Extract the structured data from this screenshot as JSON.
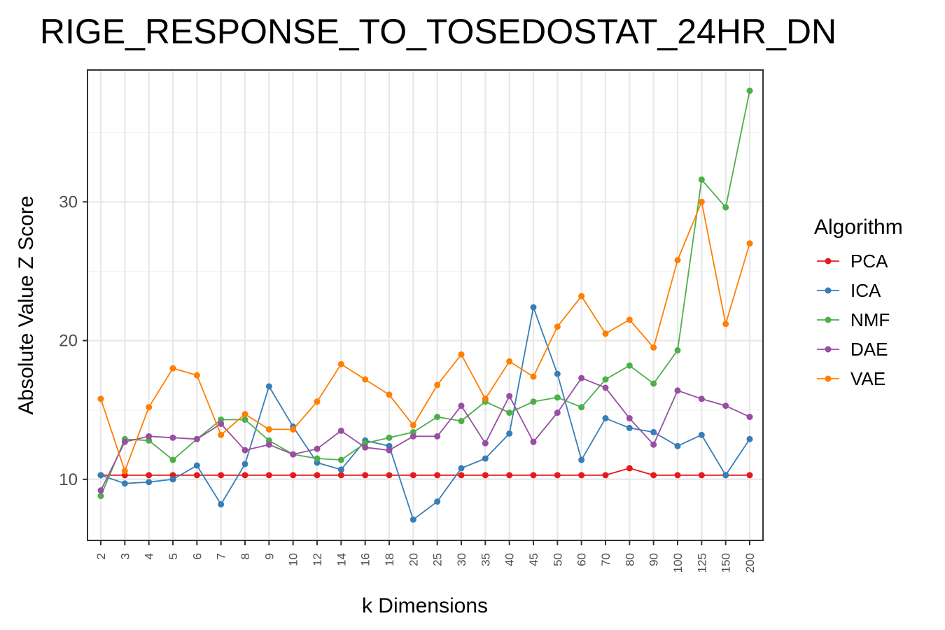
{
  "chart_data": {
    "type": "line",
    "title": "RIGE_RESPONSE_TO_TOSEDOSTAT_24HR_DN",
    "xlabel": "k Dimensions",
    "ylabel": "Absolute Value Z Score",
    "ylim": [
      5.6,
      39.5
    ],
    "yticks": [
      10,
      20,
      30
    ],
    "grid": true,
    "legend_position": "right",
    "legend_title": "Algorithm",
    "categories": [
      "2",
      "3",
      "4",
      "5",
      "6",
      "7",
      "8",
      "9",
      "10",
      "12",
      "14",
      "16",
      "18",
      "20",
      "25",
      "30",
      "35",
      "40",
      "45",
      "50",
      "60",
      "70",
      "80",
      "90",
      "100",
      "125",
      "150",
      "200"
    ],
    "series": [
      {
        "name": "PCA",
        "color": "#e41a1c",
        "values": [
          10.3,
          10.3,
          10.3,
          10.3,
          10.3,
          10.3,
          10.3,
          10.3,
          10.3,
          10.3,
          10.3,
          10.3,
          10.3,
          10.3,
          10.3,
          10.3,
          10.3,
          10.3,
          10.3,
          10.3,
          10.3,
          10.3,
          10.8,
          10.3,
          10.3,
          10.3,
          10.3,
          10.3
        ]
      },
      {
        "name": "ICA",
        "color": "#377eb8",
        "values": [
          10.3,
          9.7,
          9.8,
          10.0,
          11.0,
          8.2,
          11.1,
          16.7,
          13.8,
          11.2,
          10.7,
          12.8,
          12.4,
          7.1,
          8.4,
          10.8,
          11.5,
          13.3,
          22.4,
          17.6,
          11.4,
          14.4,
          13.7,
          13.4,
          12.4,
          13.2,
          10.3,
          12.9
        ]
      },
      {
        "name": "NMF",
        "color": "#4daf4a",
        "values": [
          8.8,
          12.9,
          12.8,
          11.4,
          12.9,
          14.3,
          14.3,
          12.8,
          11.8,
          11.5,
          11.4,
          12.6,
          13.0,
          13.4,
          14.5,
          14.2,
          15.6,
          14.8,
          15.6,
          15.9,
          15.2,
          17.2,
          18.2,
          16.9,
          19.3,
          31.6,
          29.6,
          38.0
        ]
      },
      {
        "name": "DAE",
        "color": "#984ea3",
        "values": [
          9.2,
          12.7,
          13.1,
          13.0,
          12.9,
          14.0,
          12.1,
          12.5,
          11.8,
          12.2,
          13.5,
          12.3,
          12.1,
          13.1,
          13.1,
          15.3,
          12.6,
          16.0,
          12.7,
          14.8,
          17.3,
          16.6,
          14.4,
          12.5,
          16.4,
          15.8,
          15.3,
          14.5
        ]
      },
      {
        "name": "VAE",
        "color": "#ff7f00",
        "values": [
          15.8,
          10.6,
          15.2,
          18.0,
          17.5,
          13.2,
          14.7,
          13.6,
          13.6,
          15.6,
          18.3,
          17.2,
          16.1,
          13.9,
          16.8,
          19.0,
          15.8,
          18.5,
          17.4,
          21.0,
          23.2,
          20.5,
          21.5,
          19.5,
          25.8,
          30.0,
          21.2,
          27.0
        ]
      }
    ]
  }
}
